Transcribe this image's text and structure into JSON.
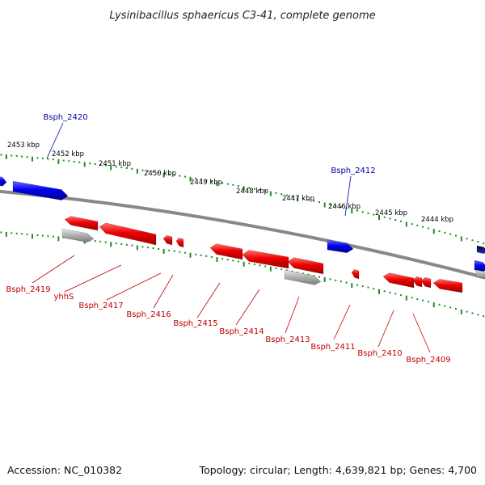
{
  "title": "Lysinibacillus sphaericus C3-41, complete genome",
  "footer": {
    "accession": "Accession: NC_010382",
    "summary": "Topology: circular; Length: 4,639,821 bp; Genes: 4,700"
  },
  "colors": {
    "plus_strand": "#0000ee",
    "minus_strand": "#e00000",
    "pseudo": "#aaaaaa",
    "backbone": "#888888",
    "ruler": "#228b22",
    "plus_label": "#0000aa",
    "minus_label": "#c00000"
  },
  "kbp_ticks": [
    "2453 kbp",
    "2452 kbp",
    "2451 kbp",
    "2450 kbp",
    "2449 kbp",
    "2448 kbp",
    "2447 kbp",
    "2446 kbp",
    "2445 kbp",
    "2444 kbp"
  ],
  "plus_genes": [
    {
      "label": "Bsph_2420"
    },
    {
      "label": "Bsph_2412"
    }
  ],
  "minus_genes": [
    {
      "label": "Bsph_2419"
    },
    {
      "label": "yhhS"
    },
    {
      "label": "Bsph_2417"
    },
    {
      "label": "Bsph_2416"
    },
    {
      "label": "Bsph_2415"
    },
    {
      "label": "Bsph_2414"
    },
    {
      "label": "Bsph_2413"
    },
    {
      "label": "Bsph_2411"
    },
    {
      "label": "Bsph_2410"
    },
    {
      "label": "Bsph_2409"
    }
  ]
}
